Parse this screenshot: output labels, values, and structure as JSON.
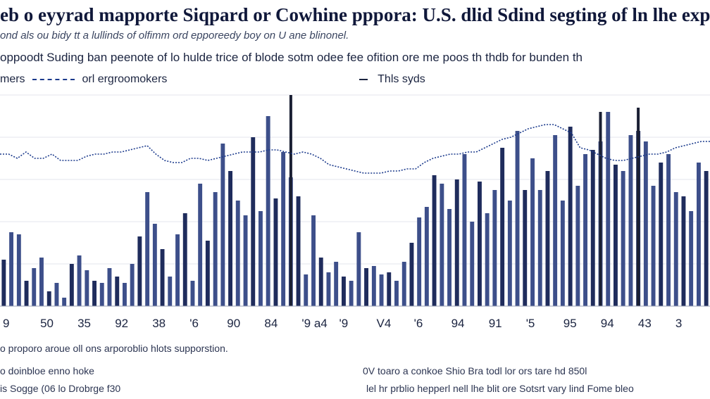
{
  "title": "eb o eyyrad mapporte Siqpard or Cowhine pppora: U.S. dlid Sdind segting of ln lhe expriteg",
  "subtitle": "ond als ou bidy tt a lullinds of olfimm ord epporeedy boy on U ane blinonel.",
  "subtitle2": "oppoodt Suding ban peenote of lo hulde trice of blode sotm odee fee ofition ore me poos th thdb for bunden th",
  "legend": {
    "left_text_a": "mers",
    "left_text_b": "orl ergroomokers",
    "right_text": "Thls syds"
  },
  "footnotes": {
    "line1": "o proporo aroue oll ons arporoblio hlots supporstion.",
    "line2": "o doinbloe enno hoke",
    "line3": "is Sogge (06 lo Drobrge f30",
    "line4": "0V toaro a conkoe Shio Bra todl lor ors tare hd 850l",
    "line5": "lel hr prblio hepperl nell lhe blit ore Sotsrt vary lind Fome bleo"
  },
  "colors": {
    "bar_dark": "#1f2c5c",
    "bar_mid": "#3d4f8a",
    "line": "#1b3a8c",
    "grid": "#e3e6ee",
    "spike": "#1a1f33"
  },
  "chart_data": {
    "type": "bar",
    "xlabel": "",
    "ylabel": "",
    "x_ticks": [
      "9",
      "50",
      "35",
      "92",
      "38",
      "'6",
      "90",
      "84",
      "'9 a4",
      "'9",
      "V4",
      "'6",
      "94",
      "91",
      "'5",
      "95",
      "94",
      "43",
      "3"
    ],
    "bars": [
      22,
      35,
      34,
      12,
      18,
      23,
      7,
      11,
      4,
      20,
      24,
      17,
      12,
      11,
      18,
      14,
      11,
      20,
      33,
      54,
      39,
      27,
      14,
      34,
      44,
      12,
      58,
      31,
      54,
      77,
      64,
      50,
      43,
      80,
      45,
      90,
      51,
      73,
      61,
      52,
      15,
      43,
      23,
      16,
      21,
      14,
      12,
      35,
      18,
      19,
      15,
      16,
      12,
      21,
      30,
      42,
      47,
      62,
      58,
      46,
      60,
      72,
      40,
      59,
      44,
      55,
      75,
      50,
      83,
      55,
      70,
      55,
      64,
      81,
      50,
      85,
      57,
      72,
      74,
      78,
      92,
      67,
      64,
      81,
      83,
      78,
      57,
      68,
      72,
      54,
      52,
      45,
      68,
      64
    ],
    "spikes": [
      {
        "index": 38,
        "value": 100
      },
      {
        "index": 79,
        "value": 92
      },
      {
        "index": 84,
        "value": 94
      }
    ],
    "line": [
      72,
      72,
      70,
      73,
      70,
      70,
      72,
      69,
      69,
      69,
      71,
      72,
      72,
      73,
      73,
      74,
      75,
      76,
      72,
      69,
      68,
      68,
      70,
      70,
      69,
      70,
      71,
      72,
      73,
      73,
      73,
      74,
      74,
      73,
      72,
      73,
      72,
      70,
      67,
      66,
      65,
      64,
      63,
      63,
      63,
      64,
      64,
      65,
      65,
      68,
      70,
      71,
      72,
      72,
      73,
      73,
      75,
      77,
      79,
      80,
      82,
      84,
      85,
      86,
      86,
      84,
      82,
      75,
      74,
      72,
      70,
      69,
      69,
      70,
      71,
      72,
      72,
      73,
      75,
      76,
      77,
      78,
      78
    ],
    "ylim": [
      0,
      100
    ],
    "grid": true
  }
}
